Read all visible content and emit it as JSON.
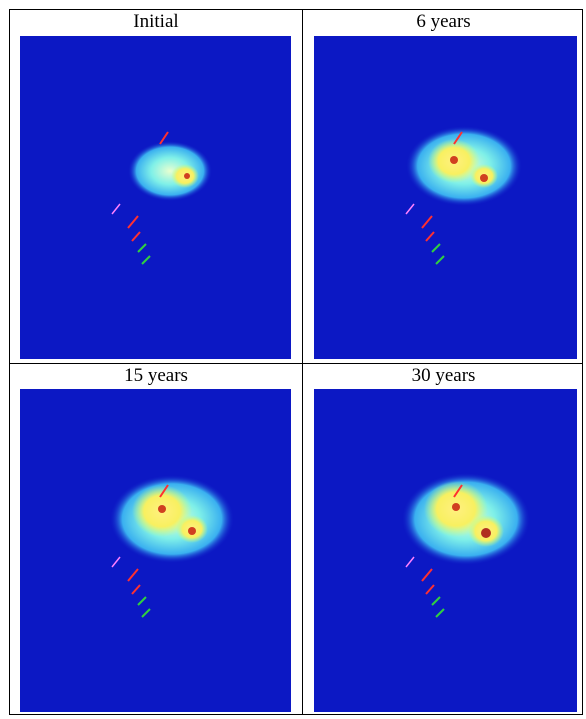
{
  "panels": [
    {
      "title": "Initial"
    },
    {
      "title": "6 years"
    },
    {
      "title": "15 years"
    },
    {
      "title": "30 years"
    }
  ]
}
